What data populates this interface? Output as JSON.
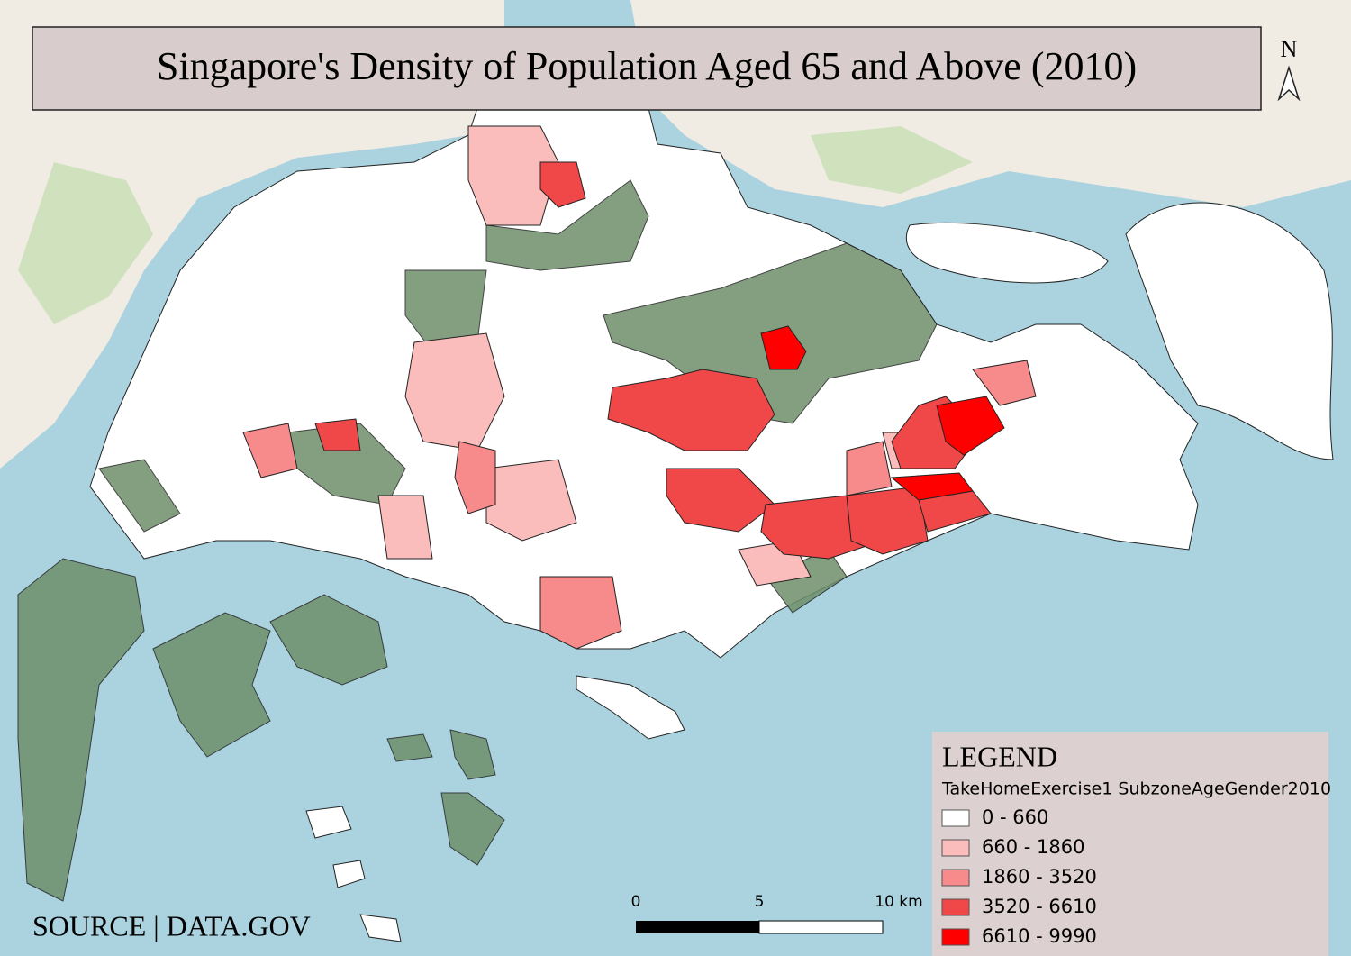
{
  "title": "Singapore's Density of Population Aged 65 and Above (2010)",
  "north_arrow": "N",
  "legend": {
    "heading": "LEGEND",
    "layer": "TakeHomeExercise1 SubzoneAgeGender2010",
    "classes": [
      {
        "label": "0 - 660",
        "color": "#ffffff"
      },
      {
        "label": "660 - 1860",
        "color": "#fbbcbc"
      },
      {
        "label": "1860 - 3520",
        "color": "#f78a8a"
      },
      {
        "label": "3520 - 6610",
        "color": "#f04848"
      },
      {
        "label": "6610 - 9990",
        "color": "#ff0000"
      }
    ]
  },
  "scale_bar": {
    "labels": [
      "0",
      "5",
      "10 km"
    ]
  },
  "source": "SOURCE | DATA.GOV"
}
